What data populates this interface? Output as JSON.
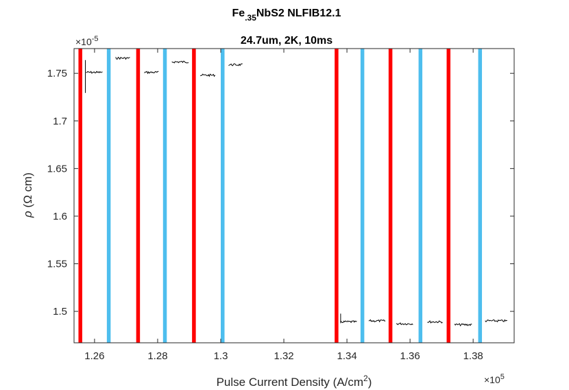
{
  "chart_data": {
    "type": "line",
    "title": {
      "line1_base": "Fe",
      "line1_sub": ".35",
      "line1_rest": "NbS2 NLFIB12.1",
      "line2": "24.7um, 2K, 10ms"
    },
    "xlabel": {
      "text": "Pulse Current Density (A/cm",
      "sup": "2",
      "close": ")"
    },
    "ylabel": {
      "symbol": "ρ",
      "text": " (Ω cm)"
    },
    "x_multiplier": {
      "base": "×10",
      "exp": "5"
    },
    "y_multiplier": {
      "base": "×10",
      "exp": "-5"
    },
    "xlim": [
      1.2535,
      1.393
    ],
    "ylim": [
      1.467,
      1.776
    ],
    "xticks": [
      1.26,
      1.28,
      1.3,
      1.32,
      1.34,
      1.36,
      1.38
    ],
    "xtick_labels": [
      "1.26",
      "1.28",
      "1.3",
      "1.32",
      "1.34",
      "1.36",
      "1.38"
    ],
    "yticks": [
      1.5,
      1.55,
      1.6,
      1.65,
      1.7,
      1.75
    ],
    "ytick_labels": [
      "1.5",
      "1.55",
      "1.6",
      "1.65",
      "1.7",
      "1.75"
    ],
    "grid": false,
    "colors": {
      "red": "#ff0000",
      "blue": "#4dbeee",
      "trace": "#000000"
    },
    "pulses": [
      {
        "x": 1.2555,
        "color": "red"
      },
      {
        "x": 1.2645,
        "color": "blue"
      },
      {
        "x": 1.2738,
        "color": "red"
      },
      {
        "x": 1.2823,
        "color": "blue"
      },
      {
        "x": 1.2915,
        "color": "red"
      },
      {
        "x": 1.3006,
        "color": "blue"
      },
      {
        "x": 1.3367,
        "color": "red"
      },
      {
        "x": 1.3449,
        "color": "blue"
      },
      {
        "x": 1.3538,
        "color": "red"
      },
      {
        "x": 1.3633,
        "color": "blue"
      },
      {
        "x": 1.3722,
        "color": "red"
      },
      {
        "x": 1.3822,
        "color": "blue"
      }
    ],
    "segments": [
      {
        "x_start": 1.2573,
        "x_end": 1.2625,
        "y": 1.751
      },
      {
        "x_start": 1.2667,
        "x_end": 1.2712,
        "y": 1.766
      },
      {
        "x_start": 1.2758,
        "x_end": 1.2803,
        "y": 1.751
      },
      {
        "x_start": 1.2845,
        "x_end": 1.2898,
        "y": 1.762
      },
      {
        "x_start": 1.2935,
        "x_end": 1.2982,
        "y": 1.748
      },
      {
        "x_start": 1.3025,
        "x_end": 1.3069,
        "y": 1.759
      },
      {
        "x_start": 1.338,
        "x_end": 1.3431,
        "y": 1.489
      },
      {
        "x_start": 1.3469,
        "x_end": 1.3522,
        "y": 1.49
      },
      {
        "x_start": 1.3556,
        "x_end": 1.3609,
        "y": 1.487
      },
      {
        "x_start": 1.3655,
        "x_end": 1.3703,
        "y": 1.489
      },
      {
        "x_start": 1.3741,
        "x_end": 1.3796,
        "y": 1.486
      },
      {
        "x_start": 1.3838,
        "x_end": 1.3908,
        "y": 1.49
      }
    ]
  }
}
